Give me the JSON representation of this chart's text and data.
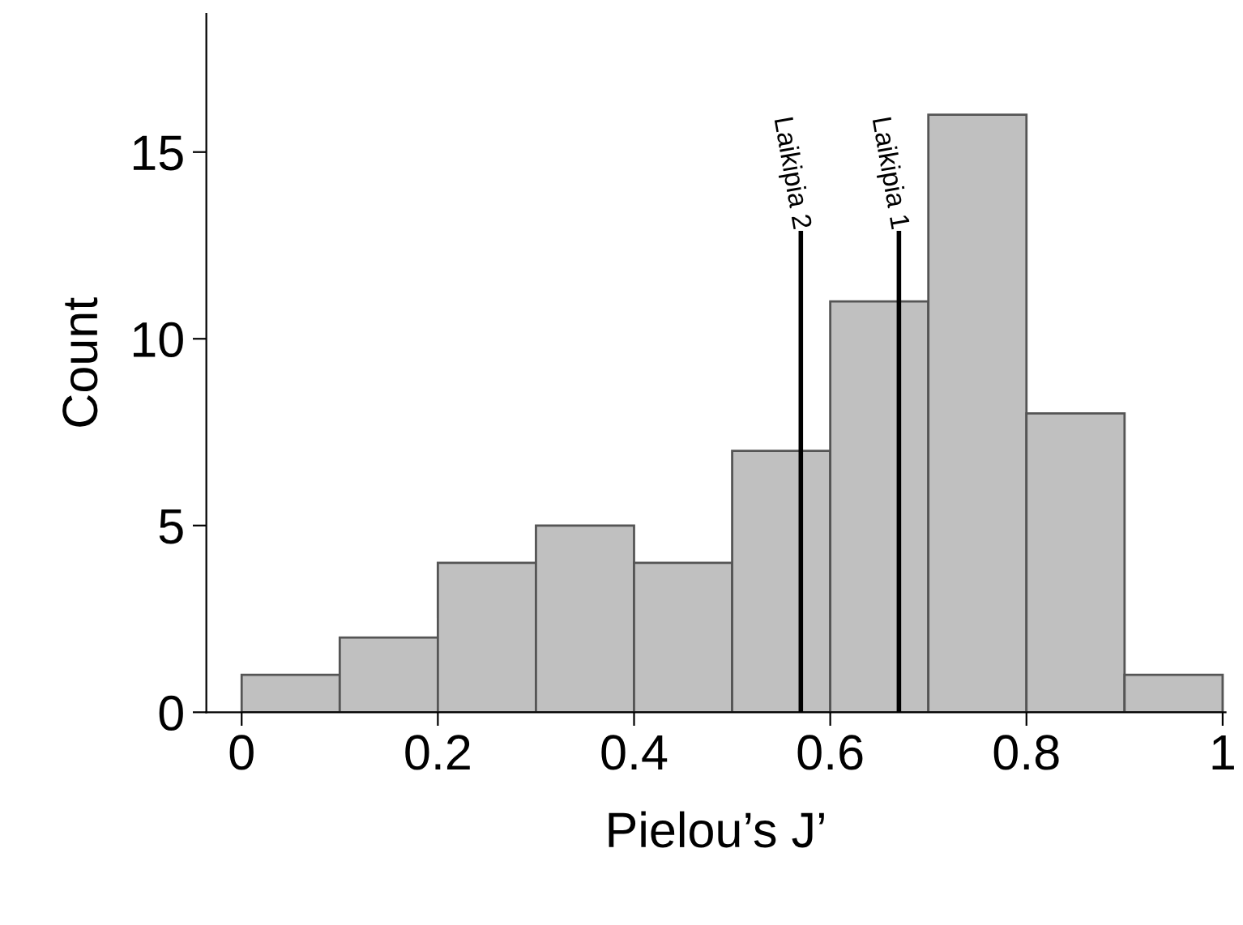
{
  "chart_data": {
    "type": "histogram",
    "xlabel": "Pielou’s J’",
    "ylabel": "Count",
    "bins": [
      0,
      0.1,
      0.2,
      0.3,
      0.4,
      0.5,
      0.6,
      0.7,
      0.8,
      0.9,
      1.0
    ],
    "values": [
      1,
      2,
      4,
      5,
      4,
      7,
      11,
      16,
      8,
      1
    ],
    "color": "#c0c0c0",
    "xlim": [
      -0.036,
      1.003
    ],
    "xticks": [
      0,
      0.2,
      0.4,
      0.6,
      0.8,
      1
    ],
    "ylim": [
      0,
      18.7
    ],
    "yticks": [
      0,
      5,
      10,
      15
    ],
    "ref_lines": [
      {
        "axis": "x",
        "value": 0.57,
        "label": "Laikipia 2",
        "color": "#000000"
      },
      {
        "axis": "x",
        "value": 0.67,
        "label": "Laikipia 1",
        "color": "#000000"
      }
    ],
    "grid": false,
    "legend": false
  }
}
